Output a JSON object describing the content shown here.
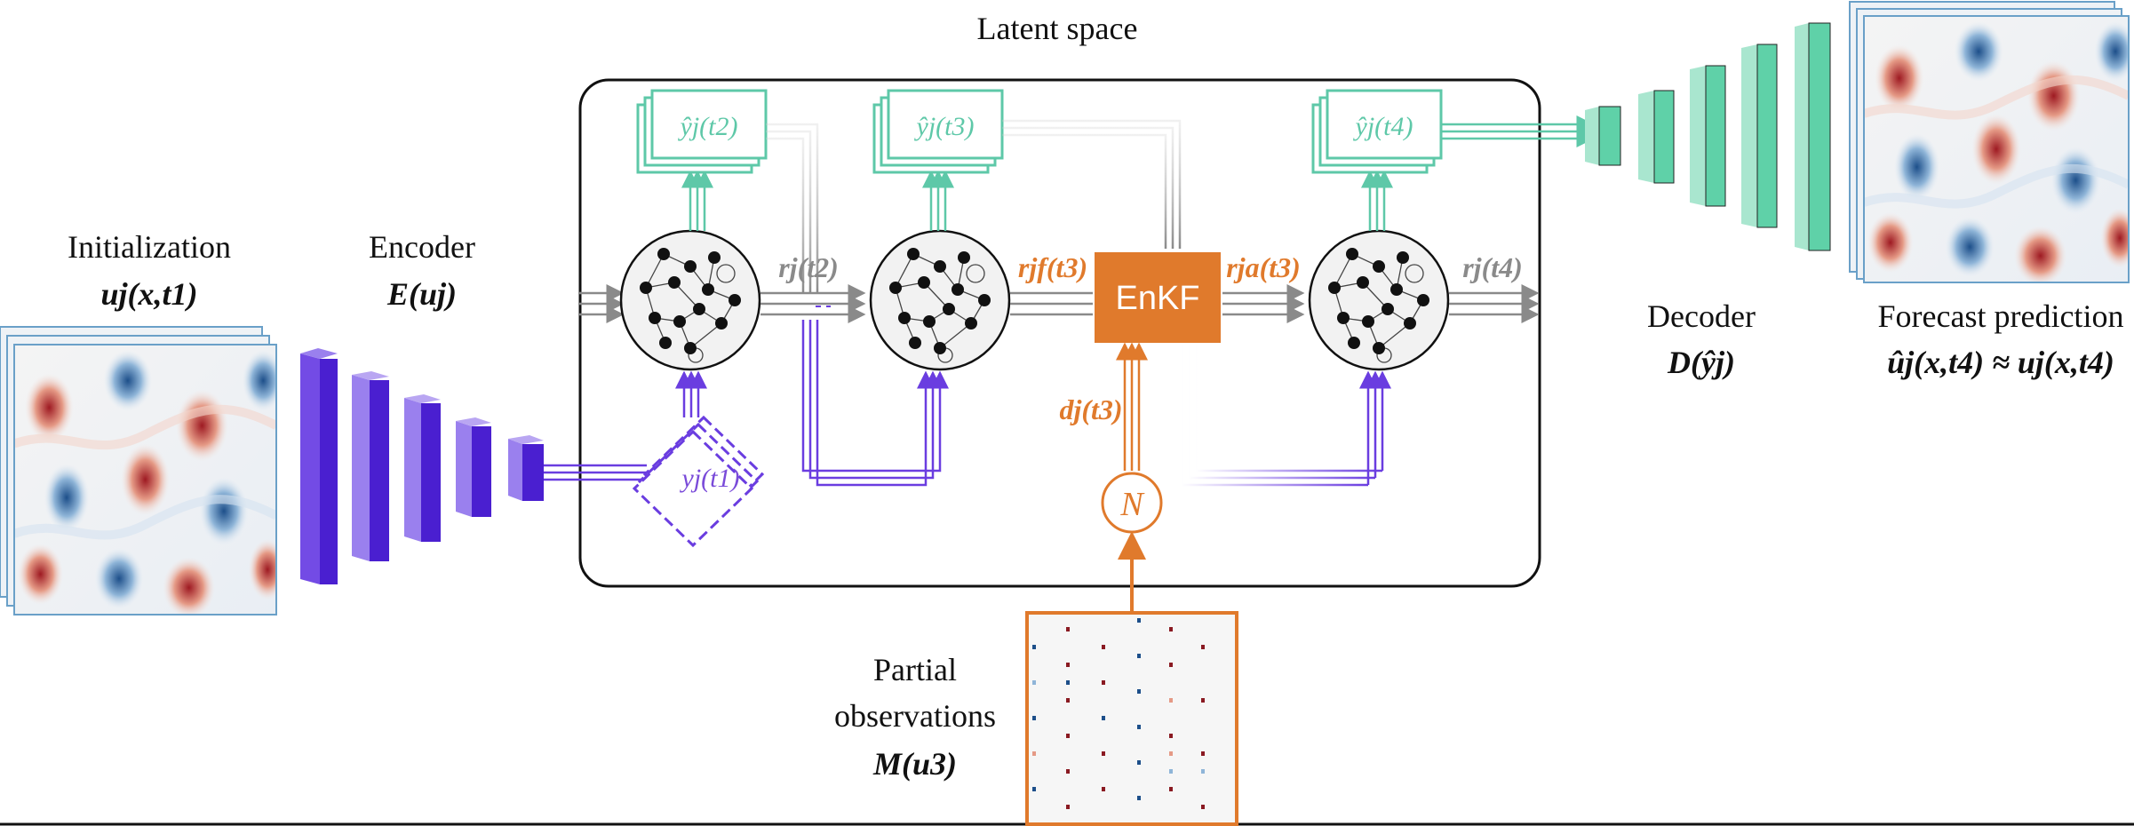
{
  "title": "Latent space",
  "labels": {
    "init_title": "Initialization",
    "init_math": "uj(x,t1)",
    "encoder_title": "Encoder",
    "encoder_math": "E(uj)",
    "decoder_title": "Decoder",
    "decoder_math": "D(ŷj)",
    "forecast_title": "Forecast prediction",
    "forecast_math": "ûj(x,t4) ≈ uj(x,t4)",
    "partial_line1": "Partial",
    "partial_line2": "observations",
    "partial_math": "M(u3)",
    "enkf": "EnKF",
    "noise": "N",
    "y_t2": "ŷj(t2)",
    "y_t3": "ŷj(t3)",
    "y_t4": "ŷj(t4)",
    "y_t1": "yj(t1)",
    "r_t2": "rj(t2)",
    "rf_t3": "rjf(t3)",
    "ra_t3": "rja(t3)",
    "r_t4": "rj(t4)",
    "d_t3": "dj(t3)"
  },
  "colors": {
    "encoder": "#5b2be0",
    "decoder": "#5fd1a8",
    "enkf": "#e07a2c",
    "teal_text": "#5ec8a8",
    "purple_text": "#7a4bd9",
    "orange_text": "#e07a2c",
    "gray": "#8a8a8a"
  }
}
